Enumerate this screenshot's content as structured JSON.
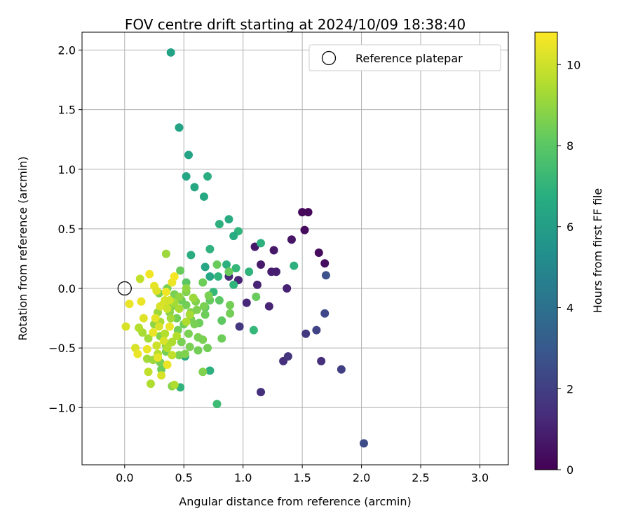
{
  "chart_data": {
    "type": "scatter",
    "title": "FOV centre drift starting at 2024/10/09 18:38:40",
    "xlabel": "Angular distance from reference (arcmin)",
    "ylabel": "Rotation from reference (arcmin)",
    "xlim": [
      -0.36,
      3.24
    ],
    "ylim": [
      -1.48,
      2.15
    ],
    "xticks": [
      0.0,
      0.5,
      1.0,
      1.5,
      2.0,
      2.5,
      3.0
    ],
    "xtick_labels": [
      "0.0",
      "0.5",
      "1.0",
      "1.5",
      "2.0",
      "2.5",
      "3.0"
    ],
    "yticks": [
      -1.0,
      -0.5,
      0.0,
      0.5,
      1.0,
      1.5,
      2.0
    ],
    "ytick_labels": [
      "−1.0",
      "−0.5",
      "0.0",
      "0.5",
      "1.0",
      "1.5",
      "2.0"
    ],
    "grid": true,
    "legend": {
      "position": "upper-right",
      "entries": [
        "Reference platepar"
      ]
    },
    "colorbar": {
      "label": "Hours from first FF file",
      "colormap": "viridis",
      "range": [
        0,
        10.8
      ],
      "ticks": [
        0,
        2,
        4,
        6,
        8,
        10
      ],
      "tick_labels": [
        "0",
        "2",
        "4",
        "6",
        "8",
        "10"
      ]
    },
    "reference_point": {
      "x": 0.0,
      "y": 0.0
    },
    "points": [
      {
        "x": 1.5,
        "y": 0.64,
        "h": 0.2
      },
      {
        "x": 1.55,
        "y": 0.64,
        "h": 0.2
      },
      {
        "x": 1.52,
        "y": 0.49,
        "h": 0.3
      },
      {
        "x": 1.64,
        "y": 0.3,
        "h": 0.3
      },
      {
        "x": 1.69,
        "y": 0.21,
        "h": 0.4
      },
      {
        "x": 1.41,
        "y": 0.41,
        "h": 0.6
      },
      {
        "x": 1.26,
        "y": 0.32,
        "h": 0.7
      },
      {
        "x": 1.1,
        "y": 0.35,
        "h": 0.7
      },
      {
        "x": 1.15,
        "y": 0.2,
        "h": 0.8
      },
      {
        "x": 1.24,
        "y": 0.14,
        "h": 0.9
      },
      {
        "x": 1.28,
        "y": 0.14,
        "h": 0.9
      },
      {
        "x": 1.37,
        "y": 0.0,
        "h": 1.0
      },
      {
        "x": 1.12,
        "y": 0.03,
        "h": 1.1
      },
      {
        "x": 1.22,
        "y": -0.15,
        "h": 1.1
      },
      {
        "x": 1.03,
        "y": -0.12,
        "h": 1.2
      },
      {
        "x": 0.96,
        "y": 0.07,
        "h": 1.1
      },
      {
        "x": 0.88,
        "y": 0.1,
        "h": 1.3
      },
      {
        "x": 0.97,
        "y": -0.32,
        "h": 1.7
      },
      {
        "x": 1.53,
        "y": -0.38,
        "h": 1.8
      },
      {
        "x": 1.62,
        "y": -0.35,
        "h": 2.2
      },
      {
        "x": 1.66,
        "y": -0.61,
        "h": 1.5
      },
      {
        "x": 1.34,
        "y": -0.61,
        "h": 1.5
      },
      {
        "x": 1.38,
        "y": -0.57,
        "h": 1.7
      },
      {
        "x": 1.15,
        "y": -0.87,
        "h": 1.5
      },
      {
        "x": 1.83,
        "y": -0.68,
        "h": 2.0
      },
      {
        "x": 1.69,
        "y": -0.21,
        "h": 2.3
      },
      {
        "x": 1.7,
        "y": 0.11,
        "h": 2.7
      },
      {
        "x": 2.02,
        "y": -1.3,
        "h": 2.5
      },
      {
        "x": 0.39,
        "y": 1.98,
        "h": 6.2
      },
      {
        "x": 0.46,
        "y": 1.35,
        "h": 6.3
      },
      {
        "x": 0.54,
        "y": 1.12,
        "h": 6.3
      },
      {
        "x": 0.52,
        "y": 0.94,
        "h": 6.4
      },
      {
        "x": 0.59,
        "y": 0.85,
        "h": 6.5
      },
      {
        "x": 0.7,
        "y": 0.94,
        "h": 6.7
      },
      {
        "x": 0.67,
        "y": 0.77,
        "h": 6.5
      },
      {
        "x": 0.88,
        "y": 0.58,
        "h": 6.6
      },
      {
        "x": 0.8,
        "y": 0.54,
        "h": 6.8
      },
      {
        "x": 0.96,
        "y": 0.48,
        "h": 7.0
      },
      {
        "x": 0.92,
        "y": 0.44,
        "h": 6.6
      },
      {
        "x": 1.15,
        "y": 0.38,
        "h": 6.8
      },
      {
        "x": 0.72,
        "y": 0.33,
        "h": 6.9
      },
      {
        "x": 0.56,
        "y": 0.28,
        "h": 6.7
      },
      {
        "x": 1.43,
        "y": 0.19,
        "h": 6.8
      },
      {
        "x": 1.05,
        "y": 0.14,
        "h": 7.0
      },
      {
        "x": 0.68,
        "y": 0.18,
        "h": 6.4
      },
      {
        "x": 0.72,
        "y": 0.1,
        "h": 6.4
      },
      {
        "x": 0.86,
        "y": 0.2,
        "h": 6.8
      },
      {
        "x": 0.94,
        "y": 0.17,
        "h": 7.2
      },
      {
        "x": 0.79,
        "y": 0.1,
        "h": 7.0
      },
      {
        "x": 0.92,
        "y": 0.03,
        "h": 7.0
      },
      {
        "x": 0.75,
        "y": -0.03,
        "h": 7.2
      },
      {
        "x": 1.09,
        "y": -0.35,
        "h": 7.2
      },
      {
        "x": 0.72,
        "y": -0.69,
        "h": 6.8
      },
      {
        "x": 0.78,
        "y": -0.97,
        "h": 7.4
      },
      {
        "x": 0.47,
        "y": -0.83,
        "h": 7.0
      },
      {
        "x": 0.51,
        "y": -0.57,
        "h": 6.5
      },
      {
        "x": 0.47,
        "y": 0.15,
        "h": 8.3
      },
      {
        "x": 0.52,
        "y": 0.05,
        "h": 8.0
      },
      {
        "x": 0.88,
        "y": 0.14,
        "h": 8.3
      },
      {
        "x": 0.78,
        "y": 0.2,
        "h": 8.3
      },
      {
        "x": 0.66,
        "y": 0.05,
        "h": 8.4
      },
      {
        "x": 0.72,
        "y": -0.1,
        "h": 8.2
      },
      {
        "x": 0.8,
        "y": -0.1,
        "h": 8.0
      },
      {
        "x": 0.68,
        "y": -0.16,
        "h": 8.0
      },
      {
        "x": 0.89,
        "y": -0.14,
        "h": 8.5
      },
      {
        "x": 0.89,
        "y": -0.21,
        "h": 8.5
      },
      {
        "x": 0.82,
        "y": -0.27,
        "h": 8.1
      },
      {
        "x": 0.82,
        "y": -0.42,
        "h": 8.4
      },
      {
        "x": 0.7,
        "y": -0.5,
        "h": 8.5
      },
      {
        "x": 0.62,
        "y": -0.52,
        "h": 8.5
      },
      {
        "x": 0.66,
        "y": -0.7,
        "h": 8.7
      },
      {
        "x": 1.11,
        "y": -0.07,
        "h": 8.3
      },
      {
        "x": 0.58,
        "y": -0.08,
        "h": 8.9
      },
      {
        "x": 0.63,
        "y": -0.29,
        "h": 8.4
      },
      {
        "x": 0.62,
        "y": -0.41,
        "h": 8.6
      },
      {
        "x": 0.66,
        "y": -0.43,
        "h": 8.6
      },
      {
        "x": 0.55,
        "y": -0.49,
        "h": 8.6
      },
      {
        "x": 0.54,
        "y": -0.38,
        "h": 8.6
      },
      {
        "x": 0.56,
        "y": -0.2,
        "h": 8.8
      },
      {
        "x": 0.52,
        "y": -0.14,
        "h": 8.5
      },
      {
        "x": 0.48,
        "y": -0.1,
        "h": 8.4
      },
      {
        "x": 0.5,
        "y": -0.3,
        "h": 8.4
      },
      {
        "x": 0.44,
        "y": -0.25,
        "h": 8.5
      },
      {
        "x": 0.46,
        "y": -0.56,
        "h": 8.6
      },
      {
        "x": 0.51,
        "y": -0.55,
        "h": 8.7
      },
      {
        "x": 0.4,
        "y": -0.82,
        "h": 8.8
      },
      {
        "x": 0.35,
        "y": -0.48,
        "h": 8.6
      },
      {
        "x": 0.38,
        "y": -0.2,
        "h": 8.8
      },
      {
        "x": 0.4,
        "y": -0.15,
        "h": 8.8
      },
      {
        "x": 0.42,
        "y": -0.05,
        "h": 8.6
      },
      {
        "x": 0.36,
        "y": 0.0,
        "h": 8.6
      },
      {
        "x": 0.29,
        "y": -0.04,
        "h": 8.7
      },
      {
        "x": 0.52,
        "y": -0.03,
        "h": 8.7
      },
      {
        "x": 0.61,
        "y": -0.18,
        "h": 8.7
      },
      {
        "x": 0.6,
        "y": -0.11,
        "h": 8.7
      },
      {
        "x": 0.67,
        "y": -0.15,
        "h": 8.6
      },
      {
        "x": 0.71,
        "y": -0.06,
        "h": 8.6
      },
      {
        "x": 0.68,
        "y": -0.22,
        "h": 8.4
      },
      {
        "x": 0.56,
        "y": -0.26,
        "h": 8.6
      },
      {
        "x": 0.59,
        "y": -0.3,
        "h": 8.6
      },
      {
        "x": 0.45,
        "y": -0.35,
        "h": 8.5
      },
      {
        "x": 0.48,
        "y": -0.45,
        "h": 8.6
      },
      {
        "x": 0.35,
        "y": -0.53,
        "h": 8.5
      },
      {
        "x": 0.3,
        "y": -0.62,
        "h": 8.6
      },
      {
        "x": 0.31,
        "y": -0.68,
        "h": 8.4
      },
      {
        "x": 0.3,
        "y": -0.4,
        "h": 8.8
      },
      {
        "x": 0.25,
        "y": -0.3,
        "h": 9.0
      },
      {
        "x": 0.35,
        "y": 0.29,
        "h": 9.2
      },
      {
        "x": 0.52,
        "y": 0.0,
        "h": 9.0
      },
      {
        "x": 0.58,
        "y": -0.08,
        "h": 9.2
      },
      {
        "x": 0.46,
        "y": -0.07,
        "h": 9.0
      },
      {
        "x": 0.42,
        "y": -0.12,
        "h": 9.3
      },
      {
        "x": 0.39,
        "y": -0.25,
        "h": 9.3
      },
      {
        "x": 0.46,
        "y": -0.17,
        "h": 9.4
      },
      {
        "x": 0.55,
        "y": -0.22,
        "h": 9.4
      },
      {
        "x": 0.52,
        "y": -0.28,
        "h": 9.5
      },
      {
        "x": 0.44,
        "y": -0.4,
        "h": 9.6
      },
      {
        "x": 0.4,
        "y": -0.45,
        "h": 9.5
      },
      {
        "x": 0.36,
        "y": -0.5,
        "h": 9.6
      },
      {
        "x": 0.4,
        "y": -0.56,
        "h": 9.8
      },
      {
        "x": 0.34,
        "y": -0.38,
        "h": 9.6
      },
      {
        "x": 0.3,
        "y": -0.28,
        "h": 9.4
      },
      {
        "x": 0.28,
        "y": -0.2,
        "h": 9.2
      },
      {
        "x": 0.2,
        "y": -0.42,
        "h": 9.3
      },
      {
        "x": 0.19,
        "y": -0.59,
        "h": 9.3
      },
      {
        "x": 0.24,
        "y": -0.6,
        "h": 9.2
      },
      {
        "x": 0.28,
        "y": -0.55,
        "h": 9.6
      },
      {
        "x": 0.22,
        "y": -0.8,
        "h": 9.5
      },
      {
        "x": 0.42,
        "y": -0.81,
        "h": 9.5
      },
      {
        "x": 0.2,
        "y": -0.7,
        "h": 9.8
      },
      {
        "x": 0.15,
        "y": -0.37,
        "h": 9.4
      },
      {
        "x": 0.12,
        "y": -0.33,
        "h": 9.6
      },
      {
        "x": 0.13,
        "y": 0.08,
        "h": 9.8
      },
      {
        "x": 0.33,
        "y": -0.13,
        "h": 10.0
      },
      {
        "x": 0.34,
        "y": -0.1,
        "h": 10.2
      },
      {
        "x": 0.38,
        "y": -0.1,
        "h": 10.1
      },
      {
        "x": 0.36,
        "y": -0.17,
        "h": 10.0
      },
      {
        "x": 0.3,
        "y": -0.15,
        "h": 10.2
      },
      {
        "x": 0.26,
        "y": -0.25,
        "h": 10.4
      },
      {
        "x": 0.29,
        "y": -0.32,
        "h": 10.2
      },
      {
        "x": 0.24,
        "y": -0.37,
        "h": 10.5
      },
      {
        "x": 0.33,
        "y": -0.44,
        "h": 10.2
      },
      {
        "x": 0.27,
        "y": -0.48,
        "h": 10.0
      },
      {
        "x": 0.19,
        "y": -0.51,
        "h": 10.5
      },
      {
        "x": 0.28,
        "y": -0.58,
        "h": 10.4
      },
      {
        "x": 0.36,
        "y": -0.64,
        "h": 10.5
      },
      {
        "x": 0.31,
        "y": -0.73,
        "h": 10.2
      },
      {
        "x": 0.16,
        "y": -0.25,
        "h": 10.3
      },
      {
        "x": 0.14,
        "y": -0.11,
        "h": 10.5
      },
      {
        "x": 0.04,
        "y": -0.13,
        "h": 10.5
      },
      {
        "x": 0.01,
        "y": -0.32,
        "h": 10.2
      },
      {
        "x": 0.09,
        "y": -0.5,
        "h": 10.2
      },
      {
        "x": 0.11,
        "y": -0.55,
        "h": 10.5
      },
      {
        "x": 0.21,
        "y": 0.12,
        "h": 10.6
      },
      {
        "x": 0.25,
        "y": 0.02,
        "h": 10.4
      },
      {
        "x": 0.27,
        "y": -0.02,
        "h": 10.3
      },
      {
        "x": 0.4,
        "y": 0.05,
        "h": 10.5
      },
      {
        "x": 0.42,
        "y": 0.1,
        "h": 10.7
      },
      {
        "x": 0.35,
        "y": -0.03,
        "h": 10.6
      },
      {
        "x": 0.38,
        "y": -0.32,
        "h": 10.5
      }
    ]
  }
}
